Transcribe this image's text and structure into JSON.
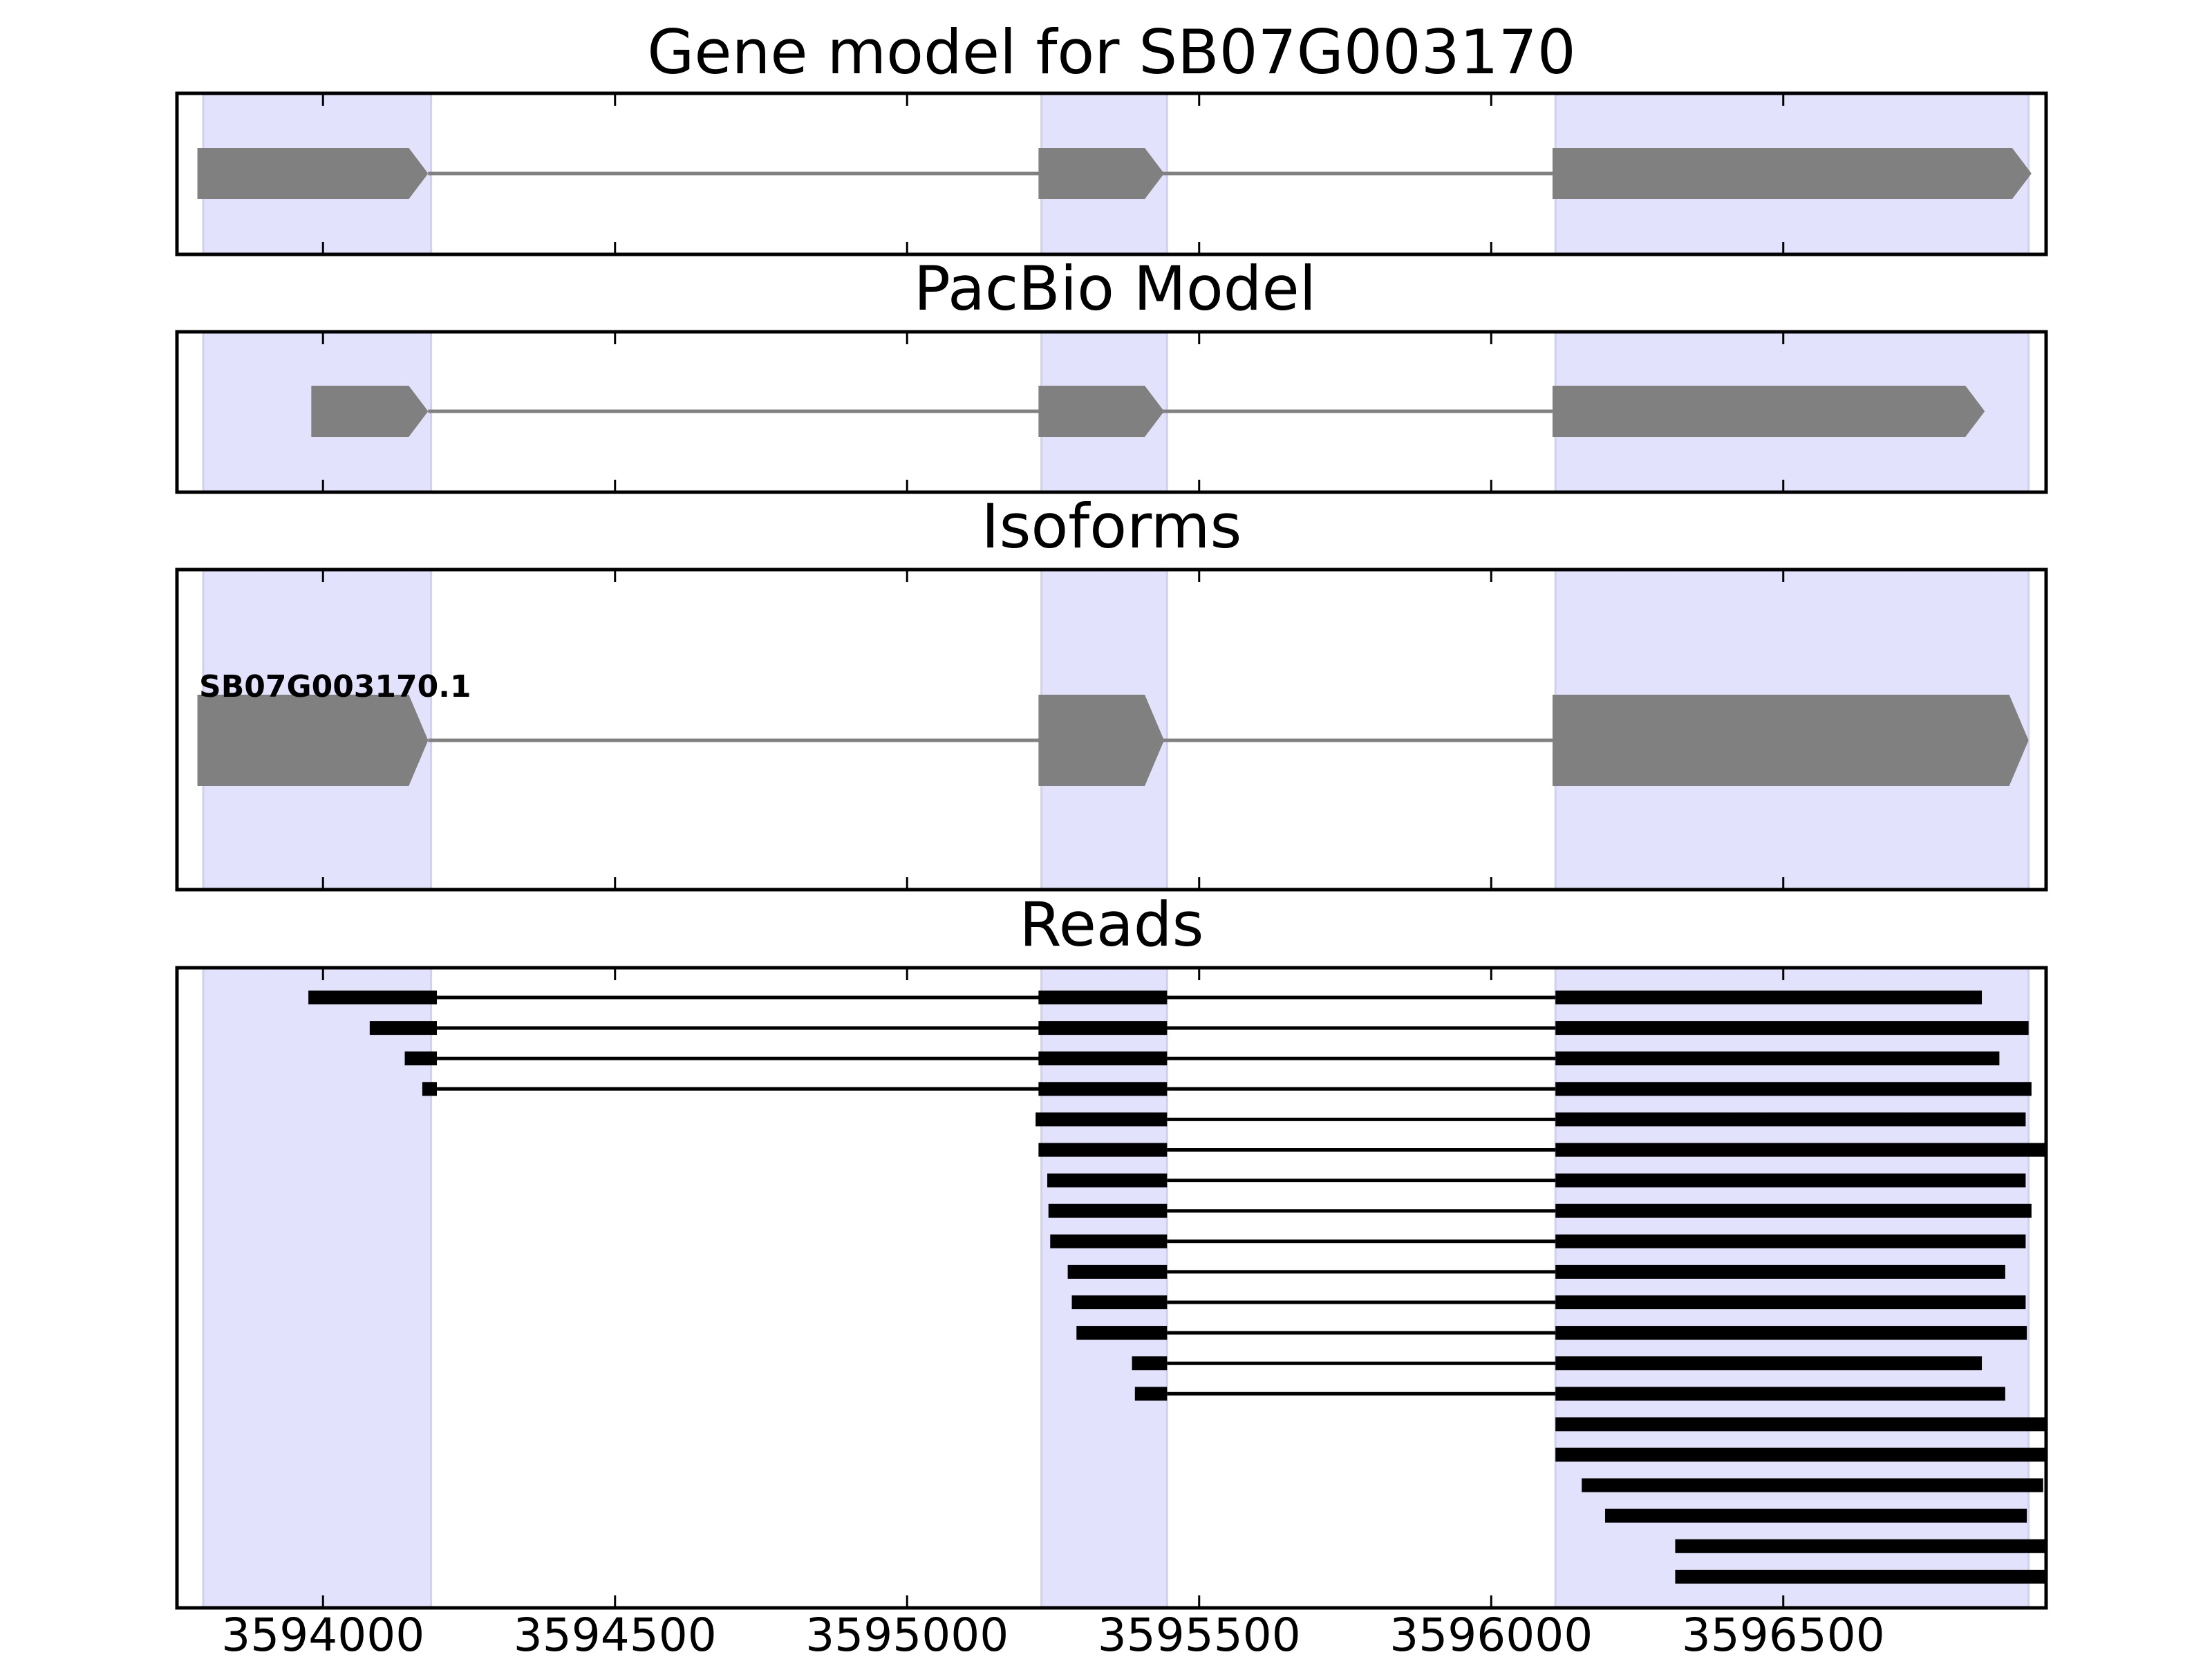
{
  "figure": {
    "title": "Gene model for SB07G003170",
    "x_ticks": [
      3594000,
      3594500,
      3595000,
      3595500,
      3596000,
      3596500
    ],
    "x_tick_labels": [
      "3594000",
      "3594500",
      "3595000",
      "3595500",
      "3596000",
      "3596500"
    ],
    "xlim": [
      3593750,
      3596950
    ],
    "exon_highlights": [
      [
        3593795,
        3594185
      ],
      [
        3595230,
        3595445
      ],
      [
        3596110,
        3596920
      ]
    ],
    "colors": {
      "highlight": "#e2e2fd",
      "feature": "#808080",
      "read": "#000000",
      "intron": "#808080"
    }
  },
  "panels": {
    "gene_model": {
      "title": "Gene model for SB07G003170",
      "exons": [
        [
          3593785,
          3594180
        ],
        [
          3595225,
          3595440
        ],
        [
          3596105,
          3596925
        ]
      ]
    },
    "pacbio": {
      "title": "PacBio Model",
      "exons": [
        [
          3593980,
          3594180
        ],
        [
          3595225,
          3595440
        ],
        [
          3596105,
          3596845
        ]
      ]
    },
    "isoforms": {
      "title": "Isoforms",
      "label": "SB07G003170.1",
      "exons": [
        [
          3593785,
          3594180
        ],
        [
          3595225,
          3595440
        ],
        [
          3596105,
          3596920
        ]
      ]
    },
    "reads": {
      "title": "Reads",
      "items": [
        [
          [
            3593975,
            3594195
          ],
          [
            3595225,
            3595445
          ],
          [
            3596110,
            3596840
          ]
        ],
        [
          [
            3594080,
            3594195
          ],
          [
            3595225,
            3595445
          ],
          [
            3596110,
            3596920
          ]
        ],
        [
          [
            3594140,
            3594195
          ],
          [
            3595225,
            3595445
          ],
          [
            3596110,
            3596870
          ]
        ],
        [
          [
            3594170,
            3594195
          ],
          [
            3595225,
            3595445
          ],
          [
            3596110,
            3596925
          ]
        ],
        [
          [
            3595220,
            3595445
          ],
          [
            3596110,
            3596915
          ]
        ],
        [
          [
            3595225,
            3595445
          ],
          [
            3596110,
            3596960
          ]
        ],
        [
          [
            3595240,
            3595445
          ],
          [
            3596110,
            3596915
          ]
        ],
        [
          [
            3595242,
            3595445
          ],
          [
            3596110,
            3596925
          ]
        ],
        [
          [
            3595245,
            3595445
          ],
          [
            3596110,
            3596915
          ]
        ],
        [
          [
            3595275,
            3595445
          ],
          [
            3596110,
            3596880
          ]
        ],
        [
          [
            3595282,
            3595445
          ],
          [
            3596110,
            3596915
          ]
        ],
        [
          [
            3595290,
            3595445
          ],
          [
            3596110,
            3596917
          ]
        ],
        [
          [
            3595385,
            3595445
          ],
          [
            3596110,
            3596840
          ]
        ],
        [
          [
            3595390,
            3595445
          ],
          [
            3596110,
            3596880
          ]
        ],
        [
          [
            3596110,
            3596960
          ]
        ],
        [
          [
            3596110,
            3596960
          ]
        ],
        [
          [
            3596155,
            3596945
          ]
        ],
        [
          [
            3596195,
            3596917
          ]
        ],
        [
          [
            3596315,
            3596960
          ]
        ],
        [
          [
            3596315,
            3596960
          ]
        ]
      ]
    }
  }
}
